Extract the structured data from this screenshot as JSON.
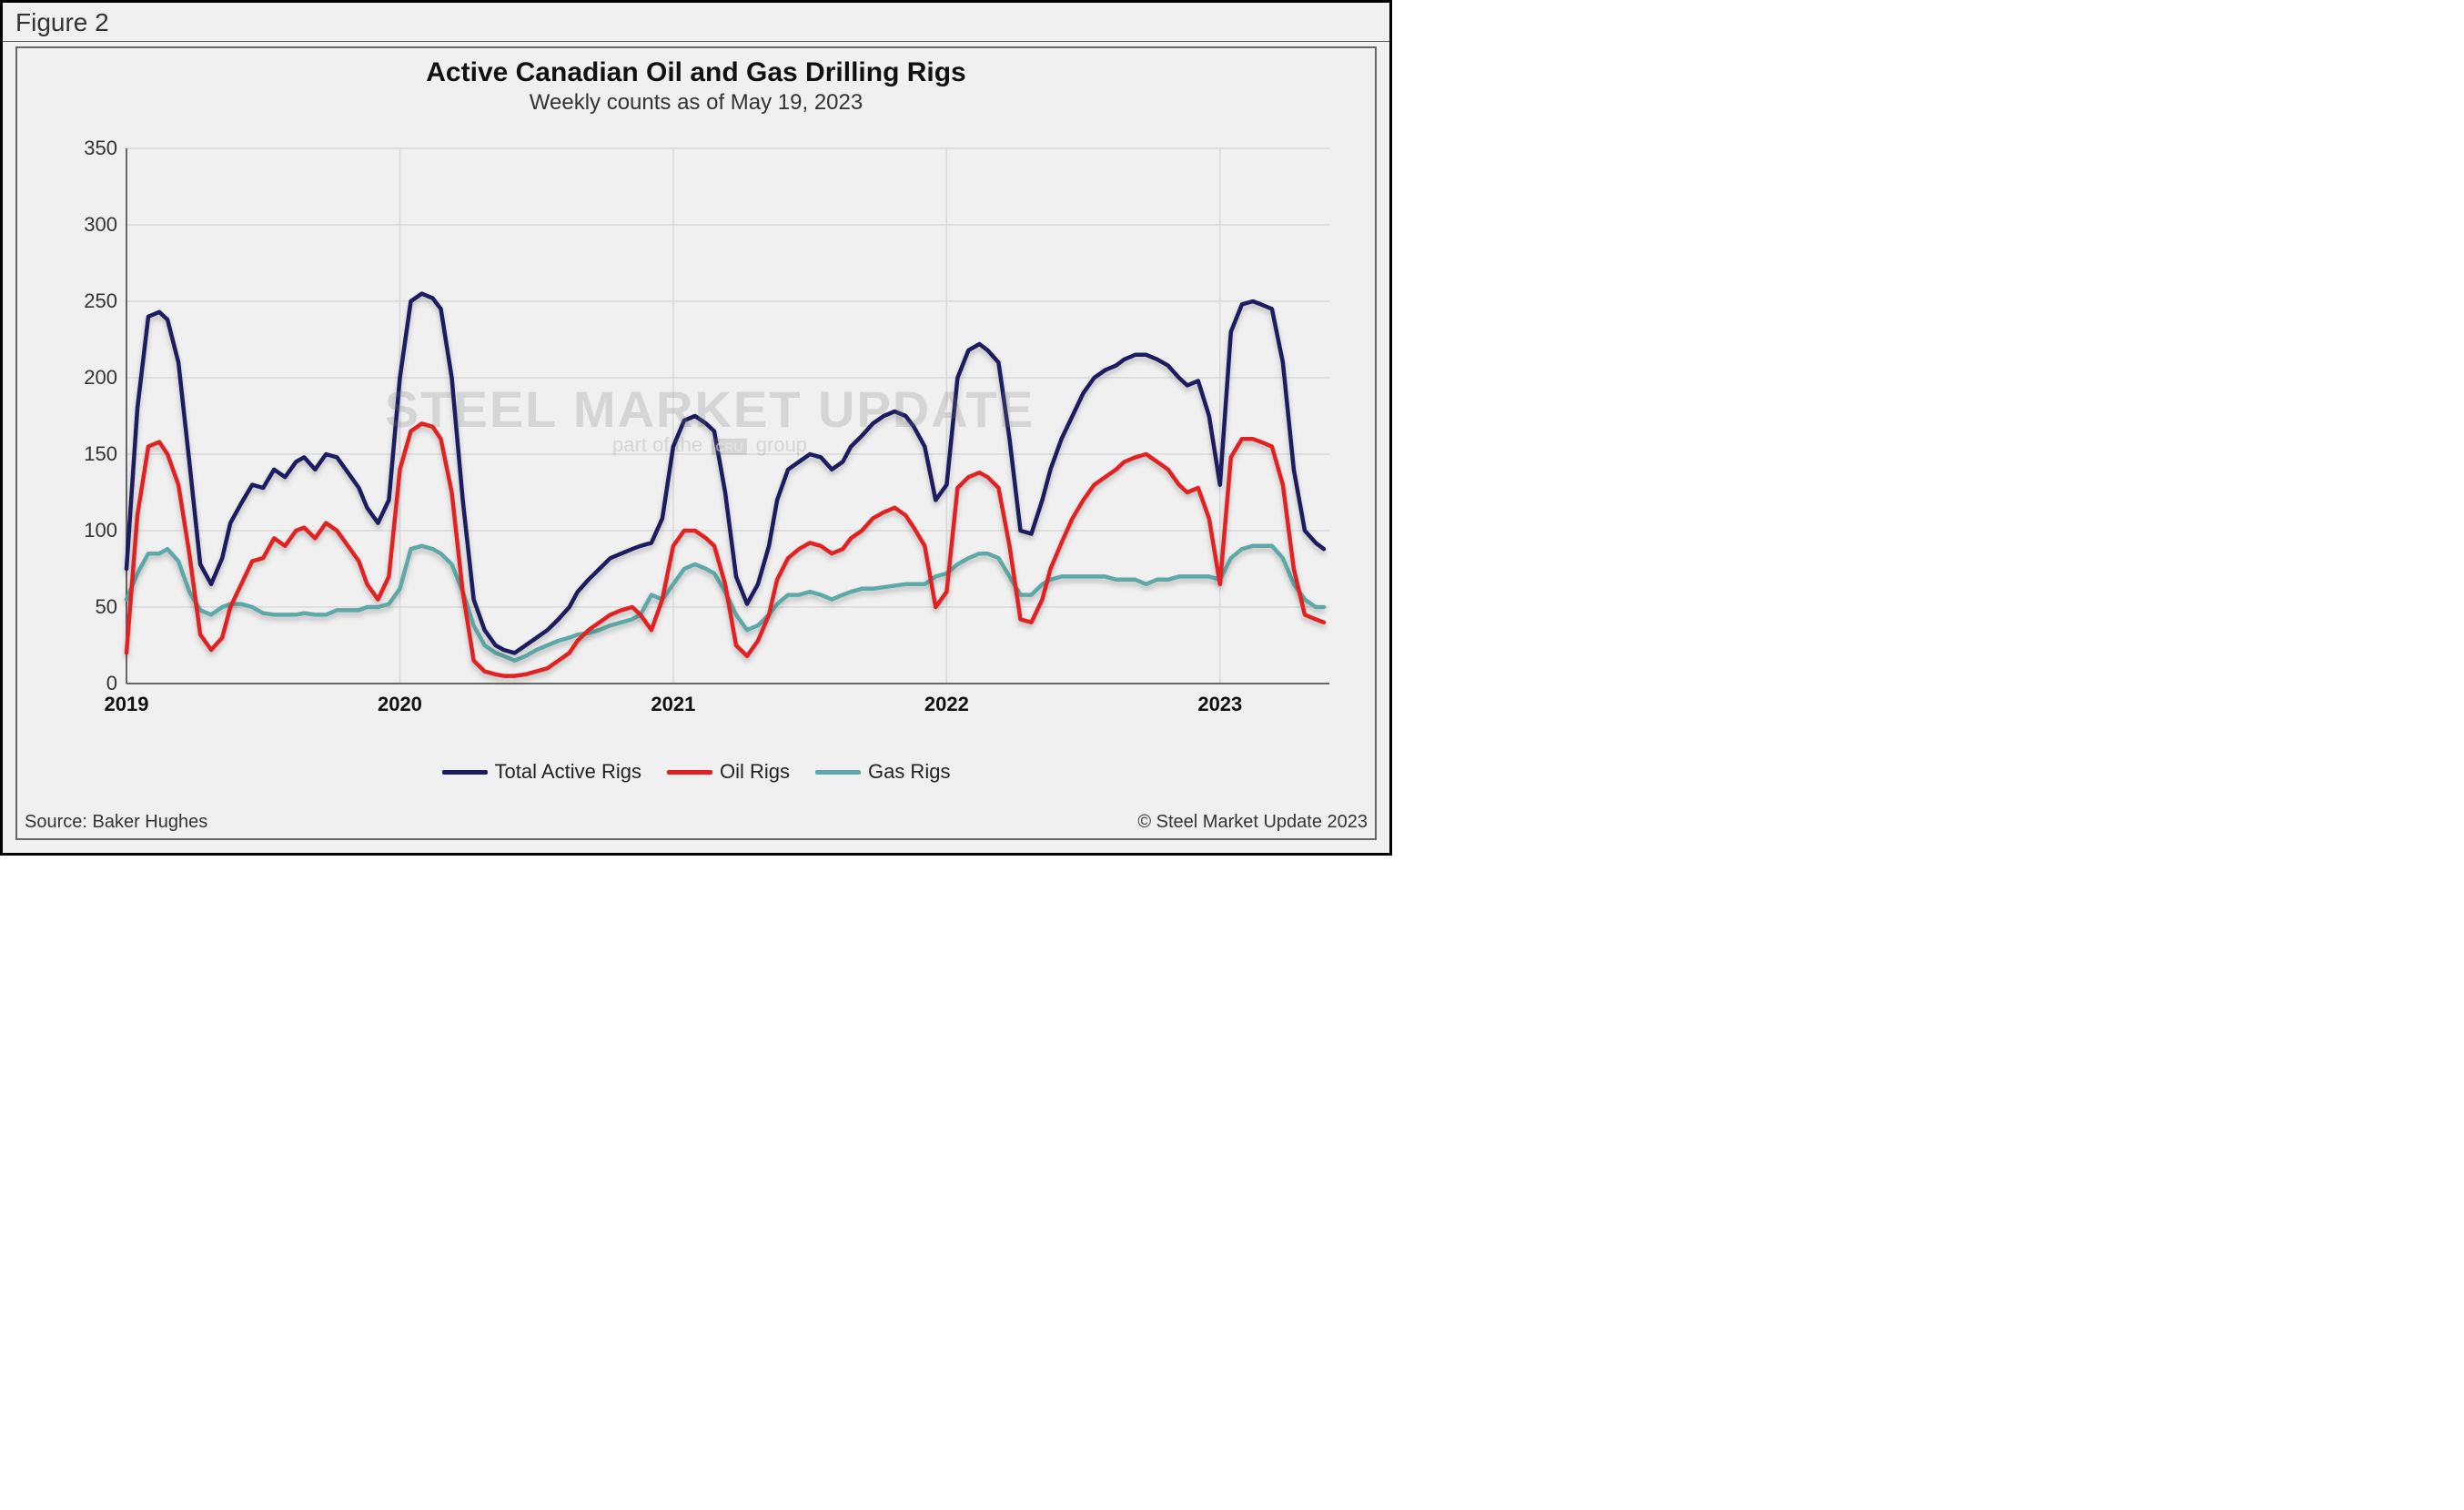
{
  "figure_label": "Figure 2",
  "chart": {
    "type": "line",
    "title": "Active Canadian Oil and Gas Drilling Rigs",
    "subtitle": "Weekly counts as of May 19, 2023",
    "title_fontsize": 30,
    "subtitle_fontsize": 24,
    "background_color": "#f0f0f0",
    "plot_background_color": "#f0f0f0",
    "grid_color": "#d8d8d8",
    "axis_line_color": "#666666",
    "tick_fontsize": 22,
    "tick_font_bold_x": true,
    "x_axis": {
      "min": 2019.0,
      "max": 2023.4,
      "ticks": [
        2019,
        2020,
        2021,
        2022,
        2023
      ],
      "tick_labels": [
        "2019",
        "2020",
        "2021",
        "2022",
        "2023"
      ]
    },
    "y_axis": {
      "min": 0,
      "max": 350,
      "tick_step": 50,
      "ticks": [
        0,
        50,
        100,
        150,
        200,
        250,
        300,
        350
      ],
      "tick_labels": [
        "0",
        "50",
        "100",
        "150",
        "200",
        "250",
        "300",
        "350"
      ]
    },
    "line_width": 4.5,
    "series": [
      {
        "name": "Total Active Rigs",
        "color": "#1a1a5e",
        "x": [
          2019.0,
          2019.04,
          2019.08,
          2019.12,
          2019.15,
          2019.19,
          2019.23,
          2019.27,
          2019.31,
          2019.35,
          2019.38,
          2019.42,
          2019.46,
          2019.5,
          2019.54,
          2019.58,
          2019.62,
          2019.65,
          2019.69,
          2019.73,
          2019.77,
          2019.81,
          2019.85,
          2019.88,
          2019.92,
          2019.96,
          2020.0,
          2020.04,
          2020.08,
          2020.12,
          2020.15,
          2020.19,
          2020.23,
          2020.27,
          2020.31,
          2020.35,
          2020.38,
          2020.42,
          2020.46,
          2020.5,
          2020.54,
          2020.58,
          2020.62,
          2020.65,
          2020.69,
          2020.73,
          2020.77,
          2020.81,
          2020.85,
          2020.88,
          2020.92,
          2020.96,
          2021.0,
          2021.04,
          2021.08,
          2021.12,
          2021.15,
          2021.19,
          2021.23,
          2021.27,
          2021.31,
          2021.35,
          2021.38,
          2021.42,
          2021.46,
          2021.5,
          2021.54,
          2021.58,
          2021.62,
          2021.65,
          2021.69,
          2021.73,
          2021.77,
          2021.81,
          2021.85,
          2021.88,
          2021.92,
          2021.96,
          2022.0,
          2022.04,
          2022.08,
          2022.12,
          2022.15,
          2022.19,
          2022.23,
          2022.27,
          2022.31,
          2022.35,
          2022.38,
          2022.42,
          2022.46,
          2022.5,
          2022.54,
          2022.58,
          2022.62,
          2022.65,
          2022.69,
          2022.73,
          2022.77,
          2022.81,
          2022.85,
          2022.88,
          2022.92,
          2022.96,
          2023.0,
          2023.04,
          2023.08,
          2023.12,
          2023.15,
          2023.19,
          2023.23,
          2023.27,
          2023.31,
          2023.35,
          2023.38
        ],
        "y": [
          75,
          180,
          240,
          243,
          238,
          210,
          145,
          78,
          65,
          82,
          105,
          118,
          130,
          128,
          140,
          135,
          145,
          148,
          140,
          150,
          148,
          138,
          128,
          115,
          105,
          120,
          200,
          250,
          255,
          252,
          245,
          200,
          120,
          55,
          35,
          25,
          22,
          20,
          25,
          30,
          35,
          42,
          50,
          60,
          68,
          75,
          82,
          85,
          88,
          90,
          92,
          108,
          155,
          172,
          175,
          170,
          165,
          125,
          70,
          52,
          65,
          90,
          120,
          140,
          145,
          150,
          148,
          140,
          145,
          155,
          162,
          170,
          175,
          178,
          175,
          168,
          155,
          120,
          130,
          200,
          218,
          222,
          218,
          210,
          160,
          100,
          98,
          120,
          140,
          160,
          175,
          190,
          200,
          205,
          208,
          212,
          215,
          215,
          212,
          208,
          200,
          195,
          198,
          175,
          130,
          230,
          248,
          250,
          248,
          245,
          210,
          140,
          100,
          92,
          88
        ]
      },
      {
        "name": "Oil Rigs",
        "color": "#e02020",
        "x": [
          2019.0,
          2019.04,
          2019.08,
          2019.12,
          2019.15,
          2019.19,
          2019.23,
          2019.27,
          2019.31,
          2019.35,
          2019.38,
          2019.42,
          2019.46,
          2019.5,
          2019.54,
          2019.58,
          2019.62,
          2019.65,
          2019.69,
          2019.73,
          2019.77,
          2019.81,
          2019.85,
          2019.88,
          2019.92,
          2019.96,
          2020.0,
          2020.04,
          2020.08,
          2020.12,
          2020.15,
          2020.19,
          2020.23,
          2020.27,
          2020.31,
          2020.35,
          2020.38,
          2020.42,
          2020.46,
          2020.5,
          2020.54,
          2020.58,
          2020.62,
          2020.65,
          2020.69,
          2020.73,
          2020.77,
          2020.81,
          2020.85,
          2020.88,
          2020.92,
          2020.96,
          2021.0,
          2021.04,
          2021.08,
          2021.12,
          2021.15,
          2021.19,
          2021.23,
          2021.27,
          2021.31,
          2021.35,
          2021.38,
          2021.42,
          2021.46,
          2021.5,
          2021.54,
          2021.58,
          2021.62,
          2021.65,
          2021.69,
          2021.73,
          2021.77,
          2021.81,
          2021.85,
          2021.88,
          2021.92,
          2021.96,
          2022.0,
          2022.04,
          2022.08,
          2022.12,
          2022.15,
          2022.19,
          2022.23,
          2022.27,
          2022.31,
          2022.35,
          2022.38,
          2022.42,
          2022.46,
          2022.5,
          2022.54,
          2022.58,
          2022.62,
          2022.65,
          2022.69,
          2022.73,
          2022.77,
          2022.81,
          2022.85,
          2022.88,
          2022.92,
          2022.96,
          2023.0,
          2023.04,
          2023.08,
          2023.12,
          2023.15,
          2023.19,
          2023.23,
          2023.27,
          2023.31,
          2023.35,
          2023.38
        ],
        "y": [
          20,
          110,
          155,
          158,
          150,
          130,
          85,
          32,
          22,
          30,
          50,
          65,
          80,
          82,
          95,
          90,
          100,
          102,
          95,
          105,
          100,
          90,
          80,
          65,
          55,
          70,
          140,
          165,
          170,
          168,
          160,
          125,
          60,
          15,
          8,
          6,
          5,
          5,
          6,
          8,
          10,
          15,
          20,
          28,
          35,
          40,
          45,
          48,
          50,
          45,
          35,
          55,
          90,
          100,
          100,
          95,
          90,
          65,
          25,
          18,
          28,
          45,
          68,
          82,
          88,
          92,
          90,
          85,
          88,
          95,
          100,
          108,
          112,
          115,
          110,
          102,
          90,
          50,
          60,
          128,
          135,
          138,
          135,
          128,
          90,
          42,
          40,
          55,
          75,
          92,
          108,
          120,
          130,
          135,
          140,
          145,
          148,
          150,
          145,
          140,
          130,
          125,
          128,
          108,
          65,
          148,
          160,
          160,
          158,
          155,
          130,
          75,
          45,
          42,
          40
        ]
      },
      {
        "name": "Gas Rigs",
        "color": "#5fa8a8",
        "x": [
          2019.0,
          2019.04,
          2019.08,
          2019.12,
          2019.15,
          2019.19,
          2019.23,
          2019.27,
          2019.31,
          2019.35,
          2019.38,
          2019.42,
          2019.46,
          2019.5,
          2019.54,
          2019.58,
          2019.62,
          2019.65,
          2019.69,
          2019.73,
          2019.77,
          2019.81,
          2019.85,
          2019.88,
          2019.92,
          2019.96,
          2020.0,
          2020.04,
          2020.08,
          2020.12,
          2020.15,
          2020.19,
          2020.23,
          2020.27,
          2020.31,
          2020.35,
          2020.38,
          2020.42,
          2020.46,
          2020.5,
          2020.54,
          2020.58,
          2020.62,
          2020.65,
          2020.69,
          2020.73,
          2020.77,
          2020.81,
          2020.85,
          2020.88,
          2020.92,
          2020.96,
          2021.0,
          2021.04,
          2021.08,
          2021.12,
          2021.15,
          2021.19,
          2021.23,
          2021.27,
          2021.31,
          2021.35,
          2021.38,
          2021.42,
          2021.46,
          2021.5,
          2021.54,
          2021.58,
          2021.62,
          2021.65,
          2021.69,
          2021.73,
          2021.77,
          2021.81,
          2021.85,
          2021.88,
          2021.92,
          2021.96,
          2022.0,
          2022.04,
          2022.08,
          2022.12,
          2022.15,
          2022.19,
          2022.23,
          2022.27,
          2022.31,
          2022.35,
          2022.38,
          2022.42,
          2022.46,
          2022.5,
          2022.54,
          2022.58,
          2022.62,
          2022.65,
          2022.69,
          2022.73,
          2022.77,
          2022.81,
          2022.85,
          2022.88,
          2022.92,
          2022.96,
          2023.0,
          2023.04,
          2023.08,
          2023.12,
          2023.15,
          2023.19,
          2023.23,
          2023.27,
          2023.31,
          2023.35,
          2023.38
        ],
        "y": [
          55,
          72,
          85,
          85,
          88,
          80,
          60,
          48,
          45,
          50,
          52,
          52,
          50,
          46,
          45,
          45,
          45,
          46,
          45,
          45,
          48,
          48,
          48,
          50,
          50,
          52,
          62,
          88,
          90,
          88,
          85,
          78,
          60,
          38,
          25,
          20,
          18,
          15,
          18,
          22,
          25,
          28,
          30,
          32,
          33,
          35,
          38,
          40,
          42,
          45,
          58,
          55,
          65,
          75,
          78,
          75,
          72,
          60,
          45,
          35,
          38,
          45,
          52,
          58,
          58,
          60,
          58,
          55,
          58,
          60,
          62,
          62,
          63,
          64,
          65,
          65,
          65,
          70,
          72,
          78,
          82,
          85,
          85,
          82,
          70,
          58,
          58,
          65,
          68,
          70,
          70,
          70,
          70,
          70,
          68,
          68,
          68,
          65,
          68,
          68,
          70,
          70,
          70,
          70,
          68,
          82,
          88,
          90,
          90,
          90,
          82,
          65,
          55,
          50,
          50
        ]
      }
    ],
    "legend": {
      "position": "bottom",
      "fontsize": 22,
      "items": [
        {
          "label": "Total Active Rigs",
          "color": "#1a1a5e"
        },
        {
          "label": "Oil Rigs",
          "color": "#e02020"
        },
        {
          "label": "Gas Rigs",
          "color": "#5fa8a8"
        }
      ]
    }
  },
  "watermark": {
    "main": "STEEL MARKET UPDATE",
    "sub_prefix": "part of the",
    "sub_badge": "CRU",
    "sub_suffix": "group",
    "color": "rgba(120,120,120,0.22)"
  },
  "source_text": "Source: Baker Hughes",
  "copyright_text": "© Steel Market Update 2023"
}
